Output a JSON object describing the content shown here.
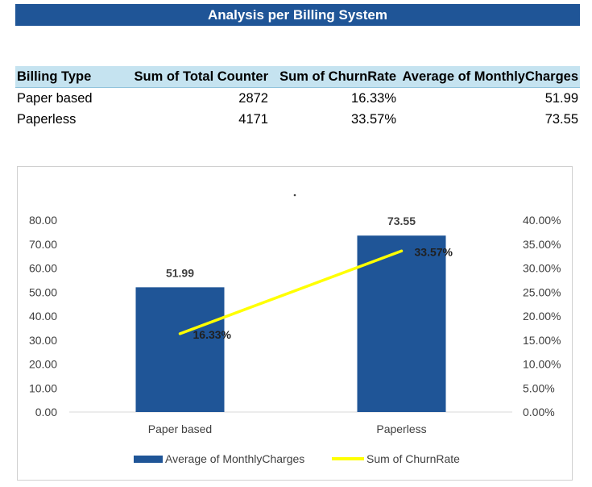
{
  "header": {
    "title": "Analysis per Billing System"
  },
  "table": {
    "columns": [
      "Billing Type",
      "Sum of Total Counter",
      "Sum of ChurnRate",
      "Average of MonthlyCharges"
    ],
    "rows": [
      {
        "billing_type": "Paper based",
        "total_counter": "2872",
        "churn_rate": "16.33%",
        "monthly_charges": "51.99"
      },
      {
        "billing_type": "Paperless",
        "total_counter": "4171",
        "churn_rate": "33.57%",
        "monthly_charges": "73.55"
      }
    ]
  },
  "chart_data": {
    "type": "bar",
    "categories": [
      "Paper based",
      "Paperless"
    ],
    "series": [
      {
        "name": "Average of MonthlyCharges",
        "type": "bar",
        "axis": "left",
        "color": "#1f5597",
        "values": [
          51.99,
          73.55
        ],
        "labels": [
          "51.99",
          "73.55"
        ]
      },
      {
        "name": "Sum of ChurnRate",
        "type": "line",
        "axis": "right",
        "color": "#ffff00",
        "values": [
          0.1633,
          0.3357
        ],
        "labels": [
          "16.33%",
          "33.57%"
        ]
      }
    ],
    "y_left": {
      "min": 0,
      "max": 80,
      "ticks": [
        "0.00",
        "10.00",
        "20.00",
        "30.00",
        "40.00",
        "50.00",
        "60.00",
        "70.00",
        "80.00"
      ]
    },
    "y_right": {
      "min": 0,
      "max": 0.4,
      "ticks": [
        "0.00%",
        "5.00%",
        "10.00%",
        "15.00%",
        "20.00%",
        "25.00%",
        "30.00%",
        "35.00%",
        "40.00%"
      ]
    },
    "grid": false,
    "legend_position": "bottom"
  }
}
